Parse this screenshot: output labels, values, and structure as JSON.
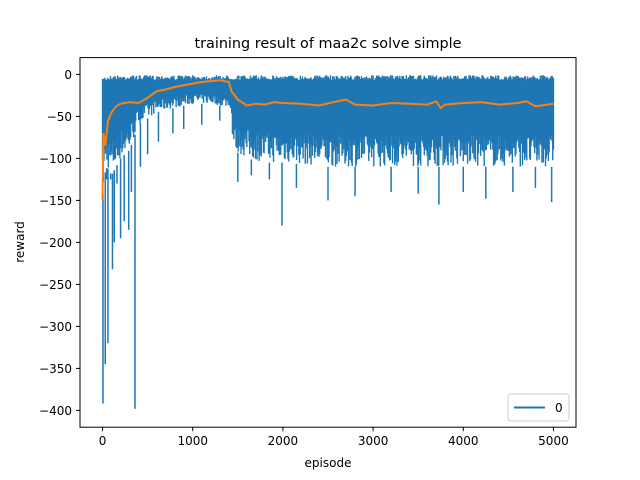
{
  "chart_data": {
    "type": "line",
    "title": "training result of maa2c solve simple",
    "xlabel": "episode",
    "ylabel": "reward",
    "xlim": [
      -250,
      5250
    ],
    "ylim": [
      -420,
      20
    ],
    "xticks": [
      0,
      1000,
      2000,
      3000,
      4000,
      5000
    ],
    "yticks": [
      0,
      -50,
      -100,
      -150,
      -200,
      -250,
      -300,
      -350,
      -400
    ],
    "grid": false,
    "legend": {
      "location": "lower right",
      "entries": [
        "0"
      ]
    },
    "series": [
      {
        "name": "0",
        "color": "#1f77b4",
        "description_type": "raw episode reward (dense, noisy band)",
        "band": {
          "x": [
            0,
            20,
            50,
            100,
            200,
            300,
            400,
            600,
            800,
            1000,
            1200,
            1420,
            1450,
            1600,
            1800,
            2000,
            2500,
            3000,
            3500,
            4000,
            4500,
            5000
          ],
          "upper": [
            -5,
            -2,
            -2,
            -1,
            -1,
            -1,
            -1,
            -1,
            -1,
            -1,
            -1,
            -1,
            -1,
            -1,
            -1,
            -1,
            -1,
            -1,
            -1,
            -1,
            -1,
            -1
          ],
          "lower": [
            -150,
            -120,
            -110,
            -120,
            -100,
            -90,
            -60,
            -45,
            -40,
            -35,
            -35,
            -40,
            -90,
            -100,
            -105,
            -105,
            -110,
            -110,
            -110,
            -110,
            -110,
            -110
          ]
        },
        "spikes": [
          {
            "x": 5,
            "y": -392
          },
          {
            "x": 30,
            "y": -345
          },
          {
            "x": 45,
            "y": -125
          },
          {
            "x": 60,
            "y": -320
          },
          {
            "x": 90,
            "y": -125
          },
          {
            "x": 110,
            "y": -232
          },
          {
            "x": 130,
            "y": -200
          },
          {
            "x": 160,
            "y": -130
          },
          {
            "x": 200,
            "y": -195
          },
          {
            "x": 240,
            "y": -175
          },
          {
            "x": 290,
            "y": -185
          },
          {
            "x": 320,
            "y": -140
          },
          {
            "x": 360,
            "y": -398
          },
          {
            "x": 420,
            "y": -110
          },
          {
            "x": 500,
            "y": -95
          },
          {
            "x": 620,
            "y": -80
          },
          {
            "x": 780,
            "y": -70
          },
          {
            "x": 900,
            "y": -65
          },
          {
            "x": 1100,
            "y": -60
          },
          {
            "x": 1300,
            "y": -55
          },
          {
            "x": 1500,
            "y": -128
          },
          {
            "x": 1650,
            "y": -120
          },
          {
            "x": 1850,
            "y": -125
          },
          {
            "x": 1990,
            "y": -180
          },
          {
            "x": 2150,
            "y": -135
          },
          {
            "x": 2500,
            "y": -150
          },
          {
            "x": 2800,
            "y": -145
          },
          {
            "x": 3200,
            "y": -140
          },
          {
            "x": 3500,
            "y": -142
          },
          {
            "x": 3730,
            "y": -155
          },
          {
            "x": 4000,
            "y": -140
          },
          {
            "x": 4250,
            "y": -148
          },
          {
            "x": 4550,
            "y": -140
          },
          {
            "x": 4800,
            "y": -135
          },
          {
            "x": 4980,
            "y": -152
          }
        ]
      },
      {
        "name": "",
        "color": "#ff7f0e",
        "description_type": "smoothed reward",
        "x": [
          0,
          10,
          30,
          60,
          100,
          150,
          200,
          300,
          400,
          500,
          600,
          700,
          800,
          900,
          1000,
          1100,
          1200,
          1300,
          1400,
          1430,
          1500,
          1600,
          1700,
          1800,
          1900,
          2000,
          2200,
          2400,
          2600,
          2700,
          2800,
          3000,
          3200,
          3400,
          3600,
          3700,
          3750,
          3800,
          4000,
          4200,
          4400,
          4600,
          4700,
          4800,
          5000
        ],
        "y": [
          -150,
          -70,
          -85,
          -55,
          -45,
          -38,
          -35,
          -33,
          -34,
          -28,
          -20,
          -18,
          -15,
          -13,
          -11,
          -9,
          -8,
          -7,
          -9,
          -20,
          -30,
          -37,
          -35,
          -36,
          -33,
          -34,
          -35,
          -37,
          -32,
          -30,
          -36,
          -37,
          -34,
          -35,
          -36,
          -32,
          -40,
          -36,
          -34,
          -33,
          -36,
          -34,
          -32,
          -38,
          -35
        ]
      }
    ]
  }
}
